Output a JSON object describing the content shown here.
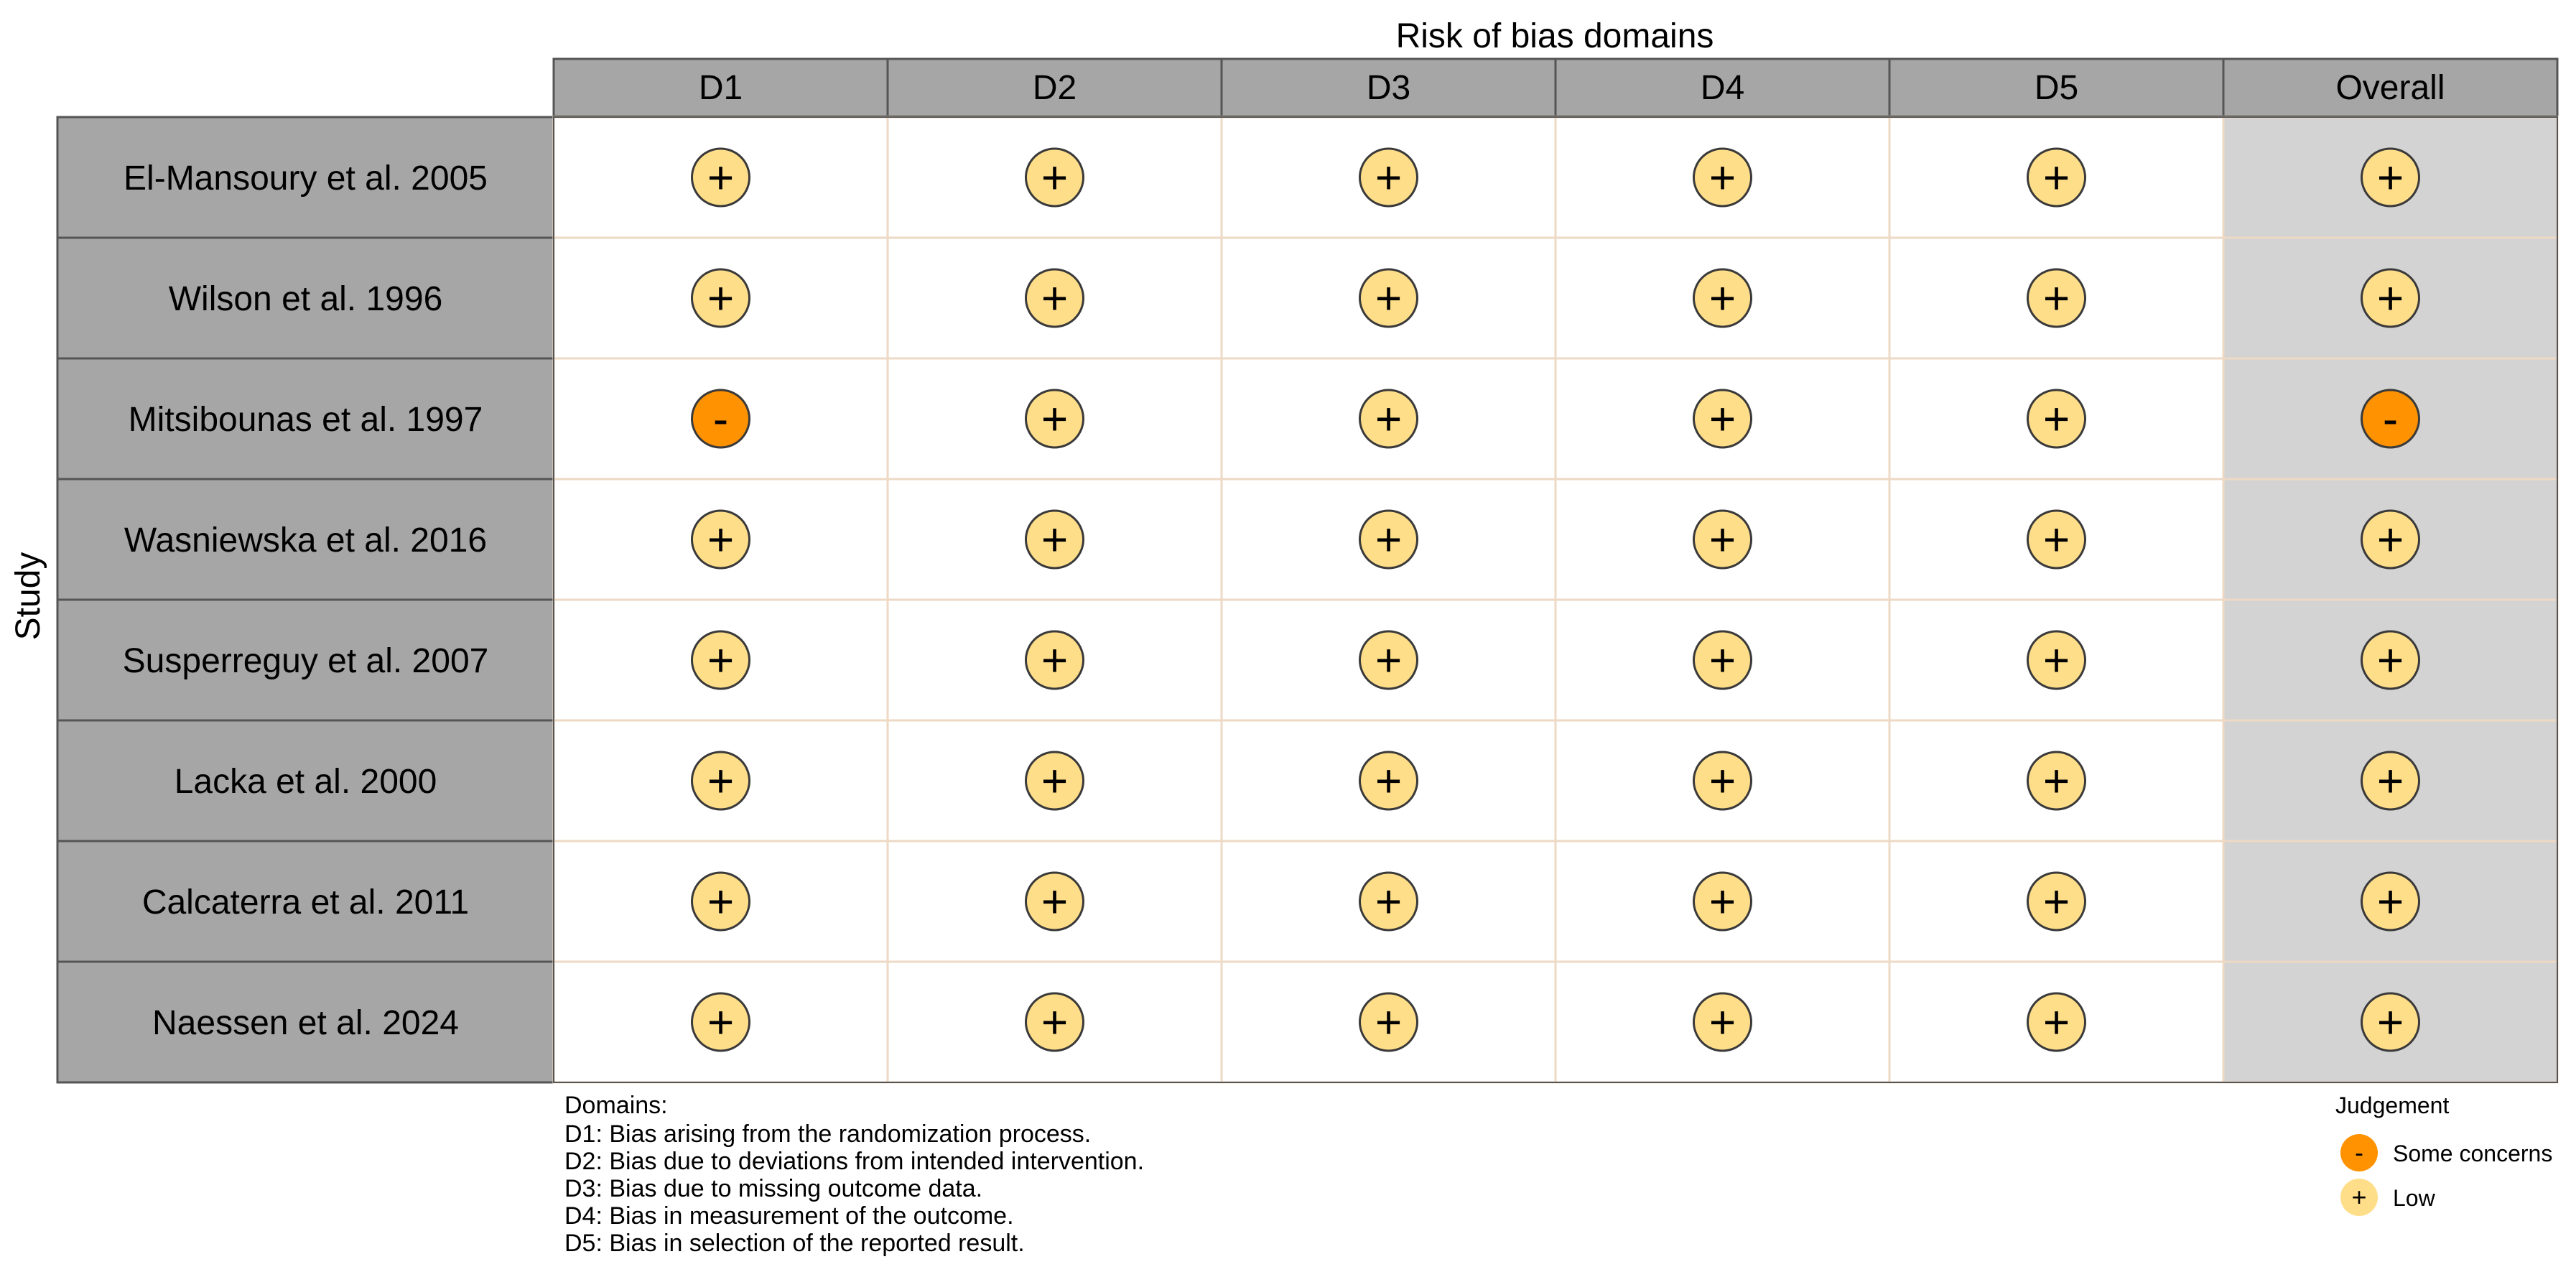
{
  "chart_data": {
    "type": "table",
    "title": "Risk of bias domains",
    "row_axis_label": "Study",
    "columns": [
      "D1",
      "D2",
      "D3",
      "D4",
      "D5",
      "Overall"
    ],
    "studies": [
      "El-Mansoury et al. 2005",
      "Wilson et al. 1996",
      "Mitsibounas et al. 1997",
      "Wasniewska et al. 2016",
      "Susperreguy et al. 2007",
      "Lacka et al. 2000",
      "Calcaterra et al. 2011",
      "Naessen et al. 2024"
    ],
    "judgements": [
      [
        "Low",
        "Low",
        "Low",
        "Low",
        "Low",
        "Low"
      ],
      [
        "Low",
        "Low",
        "Low",
        "Low",
        "Low",
        "Low"
      ],
      [
        "Some concerns",
        "Low",
        "Low",
        "Low",
        "Low",
        "Some concerns"
      ],
      [
        "Low",
        "Low",
        "Low",
        "Low",
        "Low",
        "Low"
      ],
      [
        "Low",
        "Low",
        "Low",
        "Low",
        "Low",
        "Low"
      ],
      [
        "Low",
        "Low",
        "Low",
        "Low",
        "Low",
        "Low"
      ],
      [
        "Low",
        "Low",
        "Low",
        "Low",
        "Low",
        "Low"
      ],
      [
        "Low",
        "Low",
        "Low",
        "Low",
        "Low",
        "Low"
      ]
    ],
    "symbols": {
      "Low": "+",
      "Some concerns": "-"
    },
    "colors": {
      "Low": "#FFDE8A",
      "Some concerns": "#FF9200",
      "header_bg": "#A6A6A6",
      "overall_bg": "#D3D3D3",
      "cell_border": "#EDD9C4"
    },
    "domains_legend": {
      "title": "Domains:",
      "items": [
        "D1: Bias arising from the randomization process.",
        "D2: Bias due to deviations from intended intervention.",
        "D3: Bias due to missing outcome data.",
        "D4: Bias in measurement of the outcome.",
        "D5: Bias in selection of the reported result."
      ]
    },
    "judgement_legend": {
      "title": "Judgement",
      "items": [
        {
          "label": "Some concerns",
          "symbol": "-",
          "level": "Some concerns"
        },
        {
          "label": "Low",
          "symbol": "+",
          "level": "Low"
        }
      ]
    }
  }
}
